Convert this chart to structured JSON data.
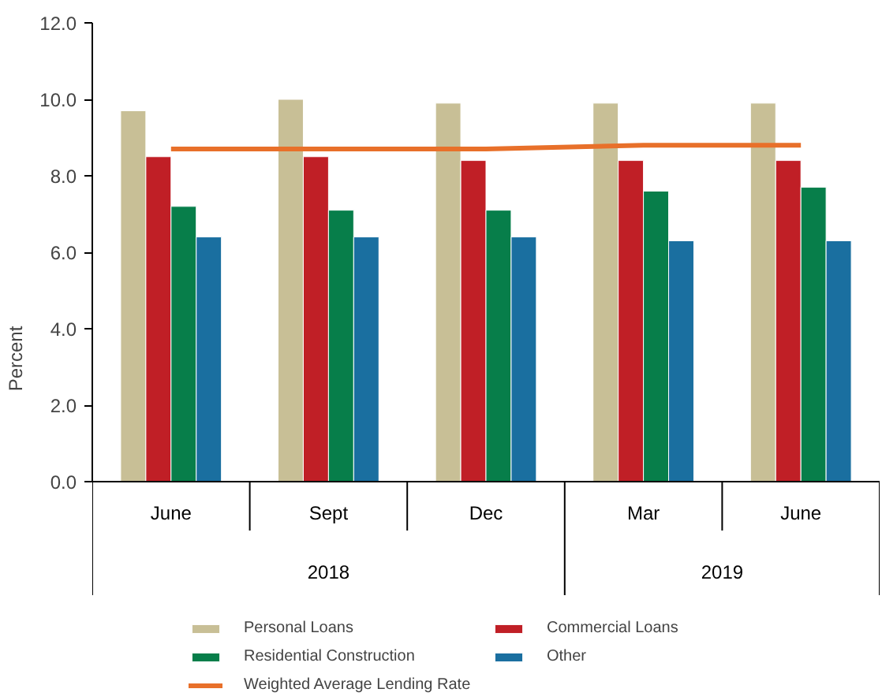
{
  "chart_data": {
    "type": "bar",
    "ylabel": "Percent",
    "categories": [
      "June",
      "Sept",
      "Dec",
      "Mar",
      "June"
    ],
    "series": [
      {
        "name": "Personal Loans",
        "color": "#c8bf96",
        "values": [
          9.7,
          10.0,
          9.9,
          9.9,
          9.9
        ]
      },
      {
        "name": "Commercial Loans",
        "color": "#c01f26",
        "values": [
          8.5,
          8.5,
          8.4,
          8.4,
          8.4
        ]
      },
      {
        "name": "Residential Construction",
        "color": "#077e4a",
        "values": [
          7.2,
          7.1,
          7.1,
          7.6,
          7.7
        ]
      },
      {
        "name": "Other",
        "color": "#1a6fa0",
        "values": [
          6.4,
          6.4,
          6.4,
          6.3,
          6.3
        ]
      },
      {
        "name": "Weighted Average Lending Rate",
        "color": "#e8702a",
        "type": "line",
        "values": [
          8.7,
          8.7,
          8.7,
          8.8,
          8.8
        ]
      }
    ],
    "annotations": [
      "2018",
      "2019"
    ],
    "ylim": [
      0,
      12
    ],
    "yticks": [
      {
        "value": 0,
        "label": "0.0"
      },
      {
        "value": 2,
        "label": "2.0"
      },
      {
        "value": 4,
        "label": "4.0"
      },
      {
        "value": 6,
        "label": "6.0"
      },
      {
        "value": 8,
        "label": "8.0"
      },
      {
        "value": 10,
        "label": "10.0"
      },
      {
        "value": 12,
        "label": "12.0"
      }
    ],
    "grid": false,
    "legend": "bottom"
  }
}
